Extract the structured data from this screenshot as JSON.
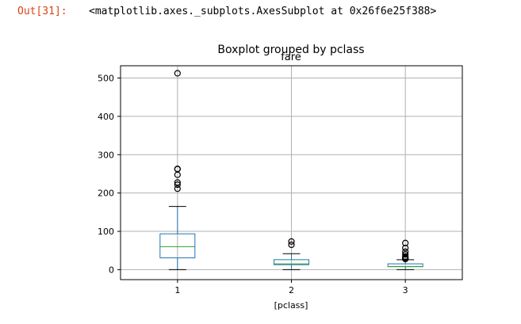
{
  "cell": {
    "prompt": "Out[31]:",
    "output_text": "<matplotlib.axes._subplots.AxesSubplot at 0x26f6e25f388>"
  },
  "chart_data": {
    "type": "boxplot",
    "suptitle": "Boxplot grouped by pclass",
    "title": "fare",
    "xlabel": "[pclass]",
    "ylabel": "",
    "categories": [
      "1",
      "2",
      "3"
    ],
    "ylim": [
      -26,
      532
    ],
    "yticks": [
      0,
      100,
      200,
      300,
      400,
      500
    ],
    "grid": true,
    "boxes": [
      {
        "category": "1",
        "whisker_low": 0,
        "q1": 30.9,
        "median": 60.0,
        "q3": 93.5,
        "whisker_high": 164.9,
        "outliers": [
          211.3,
          221.8,
          227.5,
          247.5,
          262.4,
          263.0,
          512.3
        ]
      },
      {
        "category": "2",
        "whisker_low": 0,
        "q1": 13.0,
        "median": 15.0,
        "q3": 26.0,
        "whisker_high": 41.6,
        "outliers": [
          65.0,
          73.5
        ]
      },
      {
        "category": "3",
        "whisker_low": 0,
        "q1": 7.75,
        "median": 8.05,
        "q3": 15.25,
        "whisker_high": 26.0,
        "outliers": [
          27.9,
          29.1,
          31.3,
          34.4,
          39.7,
          46.9,
          56.5,
          69.6
        ]
      }
    ],
    "colors": {
      "box": "#1f77b4",
      "median": "#2ca02c",
      "whisker": "#000000",
      "grid": "#b0b0b0",
      "axes": "#000000"
    }
  }
}
